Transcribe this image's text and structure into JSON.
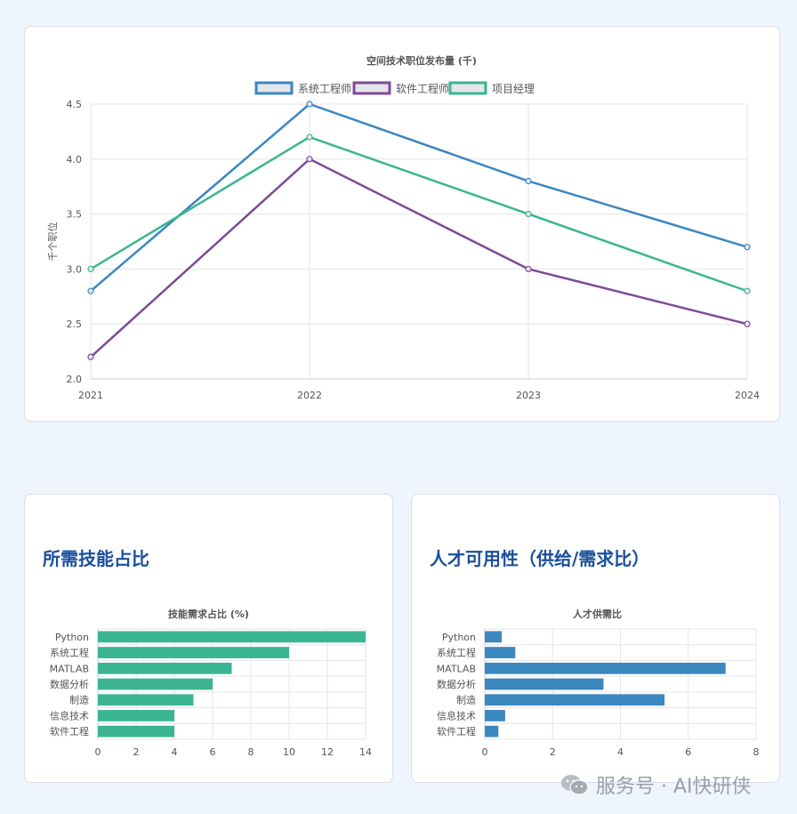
{
  "line_card": {
    "chart_data": {
      "type": "line",
      "title": "空间技术职位发布量 (千)",
      "ylabel": "千个职位",
      "xlabel": "",
      "x": [
        "2021",
        "2022",
        "2023",
        "2024"
      ],
      "ylim": [
        2.0,
        4.5
      ],
      "yticks": [
        "2.0",
        "2.5",
        "3.0",
        "3.5",
        "4.0",
        "4.5"
      ],
      "grid": true,
      "legend_position": "top-center",
      "series": [
        {
          "name": "系统工程师",
          "color": "#3b87c0",
          "values": [
            2.8,
            4.5,
            3.8,
            3.2
          ]
        },
        {
          "name": "软件工程师",
          "color": "#7d4b96",
          "values": [
            2.2,
            4.0,
            3.0,
            2.5
          ]
        },
        {
          "name": "项目经理",
          "color": "#3bb591",
          "values": [
            3.0,
            4.2,
            3.5,
            2.8
          ]
        }
      ]
    }
  },
  "skills_card": {
    "heading": "所需技能占比",
    "chart_data": {
      "type": "bar",
      "orientation": "horizontal",
      "title": "技能需求占比 (%)",
      "categories": [
        "Python",
        "系统工程",
        "MATLAB",
        "数据分析",
        "制造",
        "信息技术",
        "软件工程"
      ],
      "values": [
        14,
        10,
        7,
        6,
        5,
        4,
        4
      ],
      "xlim": [
        0,
        14
      ],
      "xticks": [
        "0",
        "2",
        "4",
        "6",
        "8",
        "10",
        "12",
        "14"
      ],
      "color": "#3bb591",
      "grid": true
    }
  },
  "talent_card": {
    "heading": "人才可用性（供给/需求比）",
    "chart_data": {
      "type": "bar",
      "orientation": "horizontal",
      "title": "人才供需比",
      "categories": [
        "Python",
        "系统工程",
        "MATLAB",
        "数据分析",
        "制造",
        "信息技术",
        "软件工程"
      ],
      "values": [
        0.5,
        0.9,
        7.1,
        3.5,
        5.3,
        0.6,
        0.4
      ],
      "xlim": [
        0,
        8
      ],
      "xticks": [
        "0",
        "2",
        "4",
        "6",
        "8"
      ],
      "color": "#3b87c0",
      "grid": true
    }
  },
  "watermark": {
    "icon": "wechat-icon",
    "text": "服务号 · AI快研侠"
  }
}
